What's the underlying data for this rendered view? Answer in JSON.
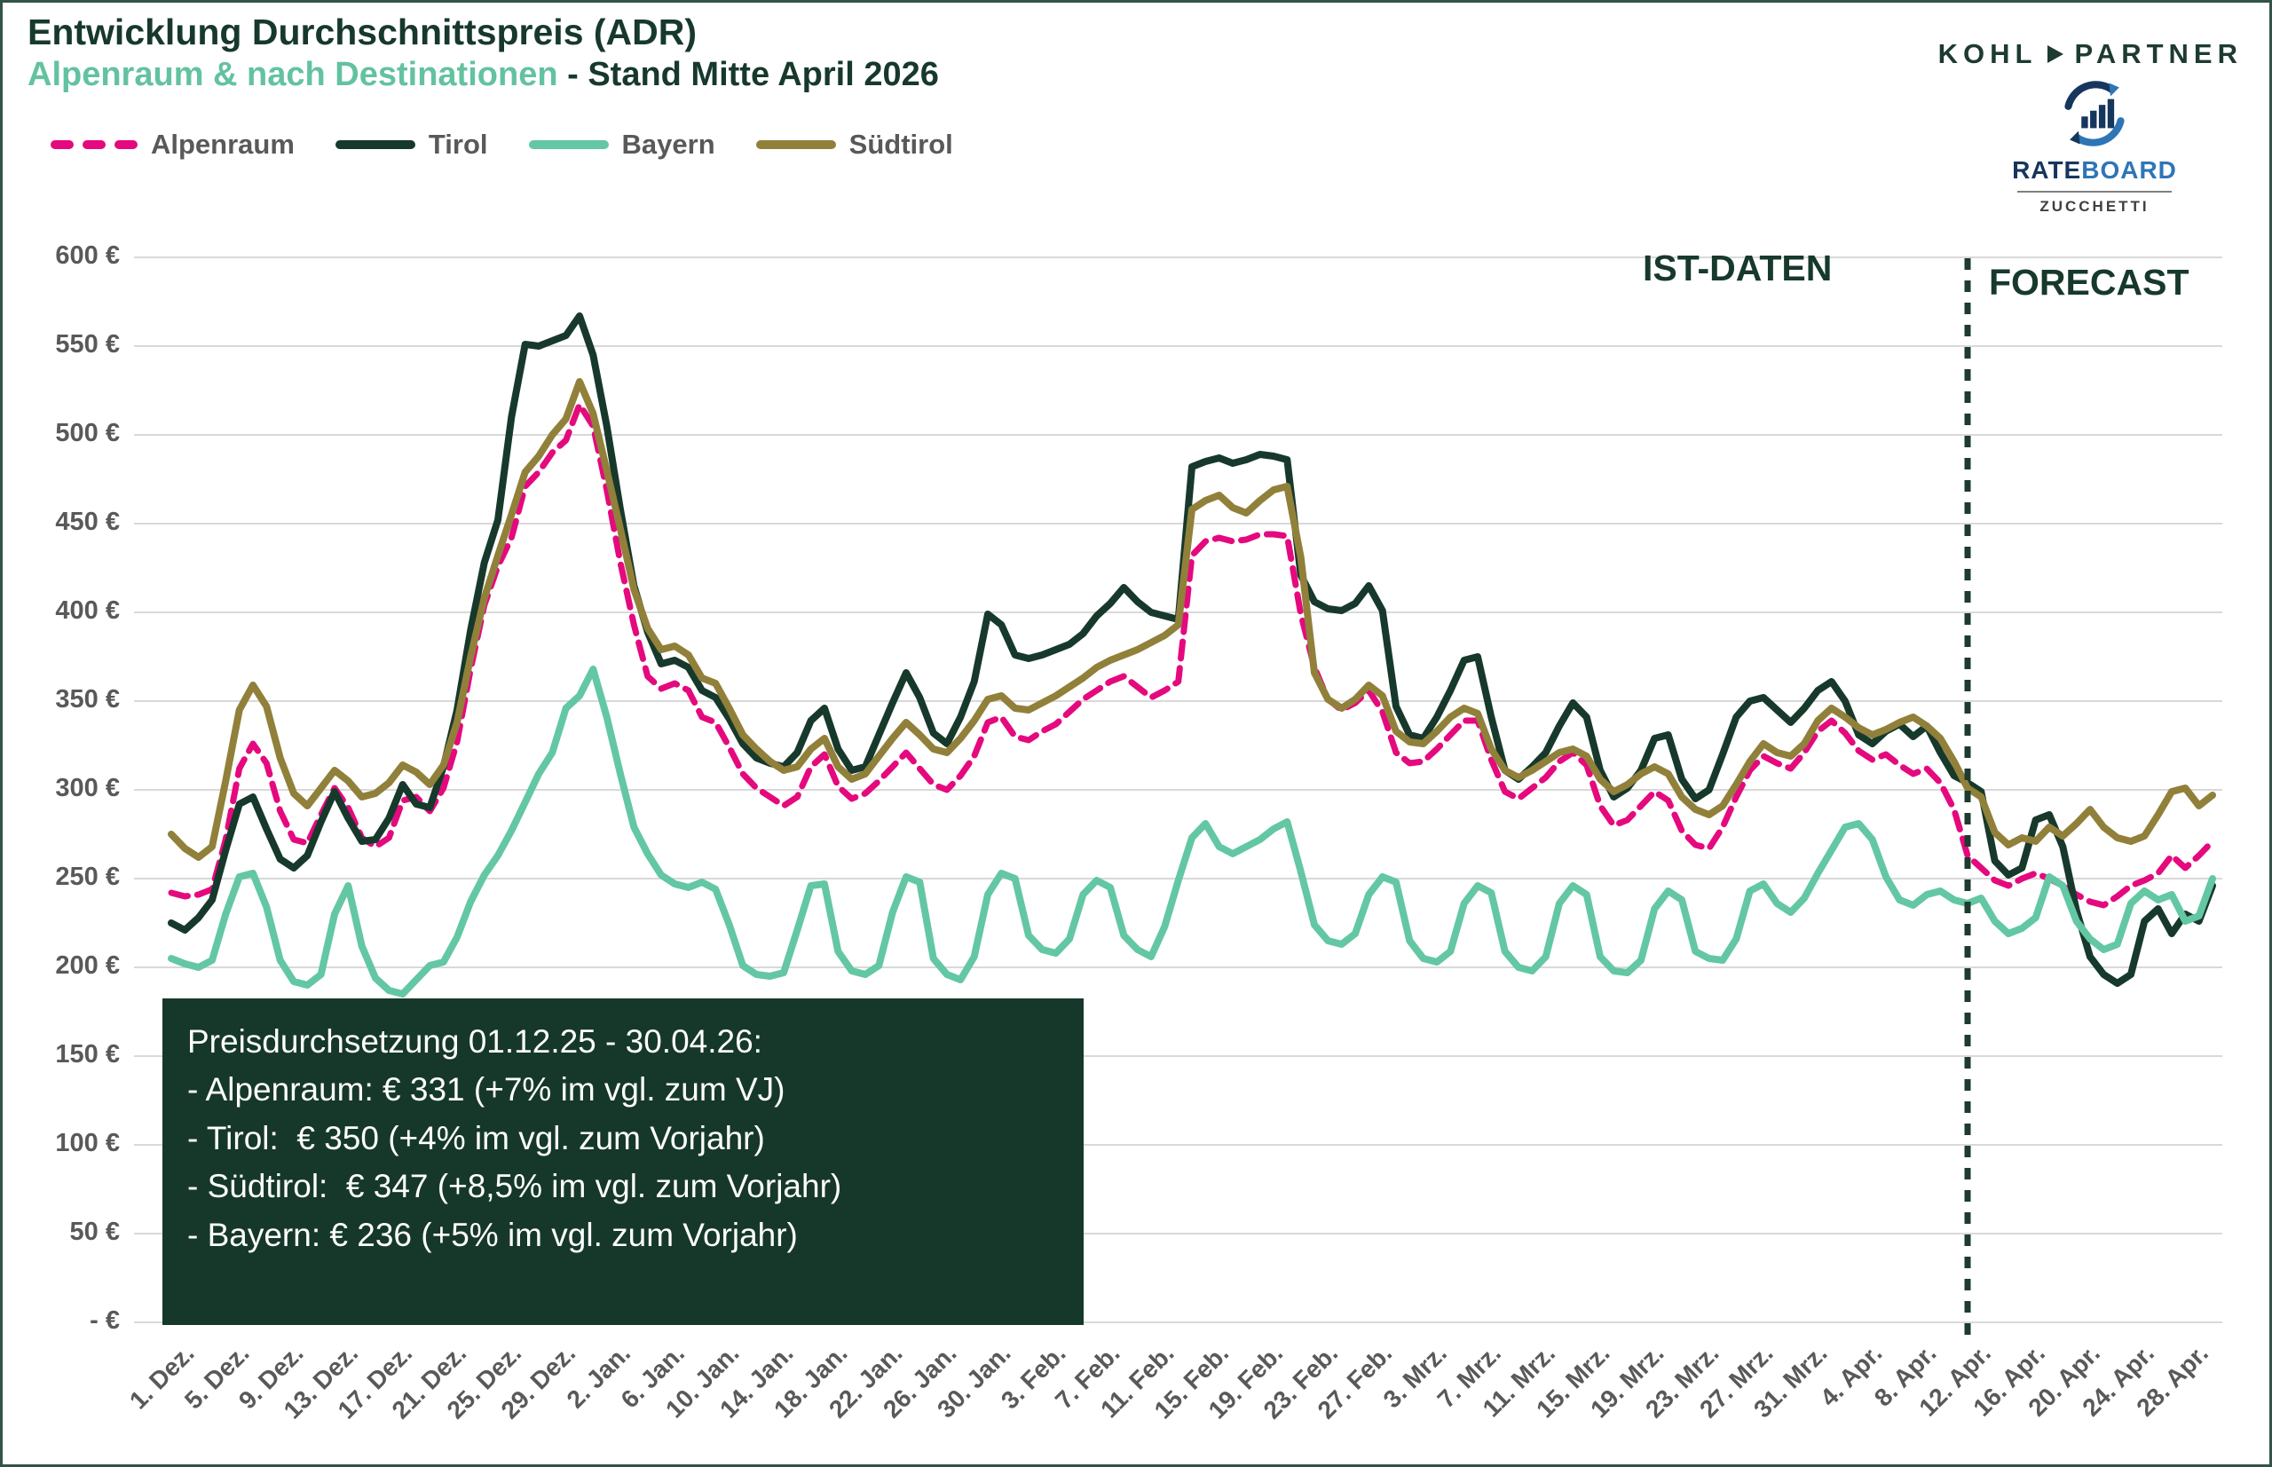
{
  "header": {
    "title": "Entwicklung Durchschnittspreis (ADR)",
    "subtitle_accent": "Alpenraum & nach Destinationen",
    "subtitle_rest": " - Stand Mitte April 2026"
  },
  "logos": {
    "kohl_left": "KOHL",
    "kohl_right": "PARTNER",
    "rateboard_rate": "RATE",
    "rateboard_board": "BOARD",
    "rateboard_sub": "ZUCCHETTI"
  },
  "annotation": {
    "lines": [
      "Preisdurchsetzung 01.12.25 - 30.04.26:",
      "- Alpenraum: € 331 (+7% im vgl. zum VJ)",
      "- Tirol:  € 350 (+4% im vgl. zum Vorjahr)",
      "- Südtirol:  € 347 (+8,5% im vgl. zum Vorjahr)",
      "- Bayern: € 236 (+5% im vgl. zum Vorjahr)"
    ]
  },
  "chart_data": {
    "type": "line",
    "title": "Entwicklung Durchschnittspreis (ADR) Alpenraum & nach Destinationen - Stand Mitte April 2026",
    "unit": "€",
    "period_start": "1. Dez.",
    "period_end": "30. Apr.",
    "grid": "horizontal",
    "legend_position": "top-left",
    "colors": {
      "gridline": "#d9d9d9",
      "divider": "#1d3b2f",
      "axis_text": "#595959"
    },
    "y_axis": {
      "min": 0,
      "max": 600,
      "step": 50,
      "ticks": [
        "- €",
        "50 €",
        "100 €",
        "150 €",
        "200 €",
        "250 €",
        "300 €",
        "350 €",
        "400 €",
        "450 €",
        "500 €",
        "550 €",
        "600 €"
      ]
    },
    "x_axis": {
      "tick_interval_days": 4,
      "tick_labels": [
        "1. Dez.",
        "5. Dez.",
        "9. Dez.",
        "13. Dez.",
        "17. Dez.",
        "21. Dez.",
        "25. Dez.",
        "29. Dez.",
        "2. Jan.",
        "6. Jan.",
        "10. Jan.",
        "14. Jan.",
        "18. Jan.",
        "22. Jan.",
        "26. Jan.",
        "30. Jan.",
        "3. Feb.",
        "7. Feb.",
        "11. Feb.",
        "15. Feb.",
        "19. Feb.",
        "23. Feb.",
        "27. Feb.",
        "3. Mrz.",
        "7. Mrz.",
        "11. Mrz.",
        "15. Mrz.",
        "19. Mrz.",
        "23. Mrz.",
        "27. Mrz.",
        "31. Mrz.",
        "4. Apr.",
        "8. Apr.",
        "12. Apr.",
        "16. Apr.",
        "20. Apr.",
        "24. Apr.",
        "28. Apr."
      ]
    },
    "forecast": {
      "divider_day_index": 132,
      "ist_label": "IST-DATEN",
      "forecast_label": "FORECAST"
    },
    "series": [
      {
        "id": "alpenraum",
        "name": "Alpenraum",
        "color": "#e5097e",
        "dashed": true,
        "width": 7,
        "values": [
          242,
          240,
          241,
          244,
          272,
          312,
          326,
          315,
          288,
          272,
          270,
          286,
          301,
          290,
          273,
          268,
          273,
          294,
          296,
          288,
          301,
          327,
          368,
          404,
          426,
          442,
          471,
          479,
          490,
          497,
          517,
          505,
          469,
          428,
          393,
          364,
          357,
          360,
          356,
          341,
          338,
          324,
          309,
          301,
          296,
          291,
          296,
          313,
          320,
          302,
          295,
          298,
          305,
          313,
          321,
          312,
          303,
          300,
          308,
          319,
          338,
          341,
          330,
          328,
          333,
          337,
          344,
          351,
          356,
          361,
          364,
          358,
          352,
          356,
          361,
          432,
          440,
          442,
          440,
          441,
          444,
          444,
          443,
          399,
          369,
          351,
          345,
          349,
          356,
          344,
          321,
          315,
          316,
          323,
          331,
          339,
          339,
          317,
          299,
          295,
          301,
          307,
          316,
          321,
          314,
          291,
          280,
          283,
          291,
          299,
          294,
          277,
          269,
          267,
          279,
          296,
          311,
          319,
          315,
          312,
          321,
          333,
          339,
          332,
          322,
          317,
          320,
          314,
          309,
          312,
          304,
          289,
          263,
          256,
          249,
          246,
          250,
          253,
          250,
          246,
          241,
          237,
          235,
          240,
          246,
          249,
          253,
          263,
          256,
          263,
          271
        ]
      },
      {
        "id": "tirol",
        "name": "Tirol",
        "color": "#17392c",
        "dashed": false,
        "width": 8,
        "values": [
          225,
          221,
          228,
          238,
          266,
          292,
          296,
          278,
          261,
          256,
          263,
          282,
          299,
          284,
          271,
          272,
          284,
          303,
          292,
          290,
          313,
          345,
          390,
          428,
          452,
          510,
          551,
          550,
          553,
          556,
          567,
          545,
          505,
          458,
          415,
          389,
          371,
          373,
          369,
          356,
          352,
          340,
          326,
          318,
          315,
          313,
          321,
          339,
          346,
          323,
          311,
          313,
          331,
          349,
          366,
          352,
          332,
          326,
          341,
          361,
          399,
          393,
          376,
          374,
          376,
          379,
          382,
          388,
          398,
          405,
          414,
          406,
          400,
          398,
          396,
          482,
          485,
          487,
          484,
          486,
          489,
          488,
          486,
          421,
          406,
          402,
          401,
          405,
          415,
          401,
          347,
          331,
          329,
          341,
          356,
          373,
          375,
          341,
          311,
          306,
          313,
          321,
          336,
          349,
          341,
          311,
          296,
          301,
          311,
          329,
          331,
          306,
          295,
          300,
          320,
          341,
          350,
          352,
          345,
          338,
          346,
          356,
          361,
          350,
          331,
          326,
          333,
          337,
          330,
          336,
          321,
          308,
          304,
          299,
          260,
          252,
          256,
          283,
          286,
          268,
          232,
          206,
          196,
          191,
          196,
          226,
          233,
          219,
          230,
          226,
          246
        ]
      },
      {
        "id": "bayern",
        "name": "Bayern",
        "color": "#63c7a3",
        "dashed": false,
        "width": 8,
        "values": [
          205,
          202,
          200,
          204,
          230,
          251,
          253,
          234,
          204,
          192,
          190,
          196,
          230,
          246,
          212,
          194,
          187,
          185,
          193,
          201,
          203,
          217,
          237,
          252,
          263,
          277,
          293,
          309,
          321,
          346,
          353,
          368,
          341,
          309,
          279,
          264,
          252,
          247,
          245,
          248,
          244,
          224,
          201,
          196,
          195,
          197,
          221,
          246,
          247,
          209,
          198,
          196,
          201,
          231,
          251,
          248,
          205,
          196,
          193,
          206,
          241,
          253,
          250,
          218,
          210,
          208,
          216,
          241,
          249,
          245,
          218,
          210,
          206,
          223,
          249,
          273,
          281,
          268,
          264,
          268,
          272,
          278,
          282,
          254,
          224,
          215,
          213,
          219,
          241,
          251,
          248,
          215,
          205,
          203,
          209,
          236,
          246,
          242,
          209,
          200,
          198,
          206,
          236,
          246,
          241,
          206,
          198,
          197,
          204,
          233,
          243,
          238,
          209,
          205,
          204,
          216,
          243,
          247,
          236,
          231,
          239,
          253,
          266,
          279,
          281,
          272,
          251,
          238,
          235,
          241,
          243,
          238,
          236,
          239,
          226,
          219,
          222,
          228,
          251,
          246,
          226,
          216,
          210,
          213,
          236,
          243,
          238,
          241,
          226,
          229,
          250
        ]
      },
      {
        "id": "suedtirol",
        "name": "Südtirol",
        "color": "#91803a",
        "dashed": false,
        "width": 8,
        "values": [
          275,
          267,
          262,
          268,
          305,
          345,
          359,
          347,
          318,
          298,
          291,
          301,
          311,
          305,
          296,
          298,
          304,
          314,
          310,
          303,
          314,
          338,
          375,
          408,
          432,
          455,
          479,
          488,
          500,
          509,
          530,
          512,
          480,
          447,
          413,
          391,
          379,
          381,
          376,
          363,
          360,
          346,
          331,
          323,
          316,
          311,
          313,
          323,
          329,
          313,
          306,
          309,
          319,
          329,
          338,
          331,
          323,
          321,
          329,
          339,
          351,
          353,
          346,
          345,
          349,
          353,
          358,
          363,
          369,
          373,
          376,
          379,
          383,
          387,
          393,
          458,
          463,
          466,
          459,
          456,
          463,
          469,
          471,
          431,
          366,
          351,
          346,
          351,
          359,
          353,
          333,
          327,
          326,
          333,
          341,
          346,
          343,
          323,
          311,
          307,
          311,
          316,
          321,
          323,
          319,
          306,
          299,
          303,
          309,
          313,
          309,
          296,
          289,
          286,
          291,
          303,
          316,
          326,
          321,
          319,
          326,
          339,
          346,
          341,
          335,
          331,
          334,
          338,
          341,
          336,
          329,
          316,
          301,
          296,
          276,
          269,
          273,
          271,
          279,
          274,
          281,
          289,
          279,
          273,
          271,
          274,
          286,
          299,
          301,
          291,
          297
        ]
      }
    ]
  }
}
